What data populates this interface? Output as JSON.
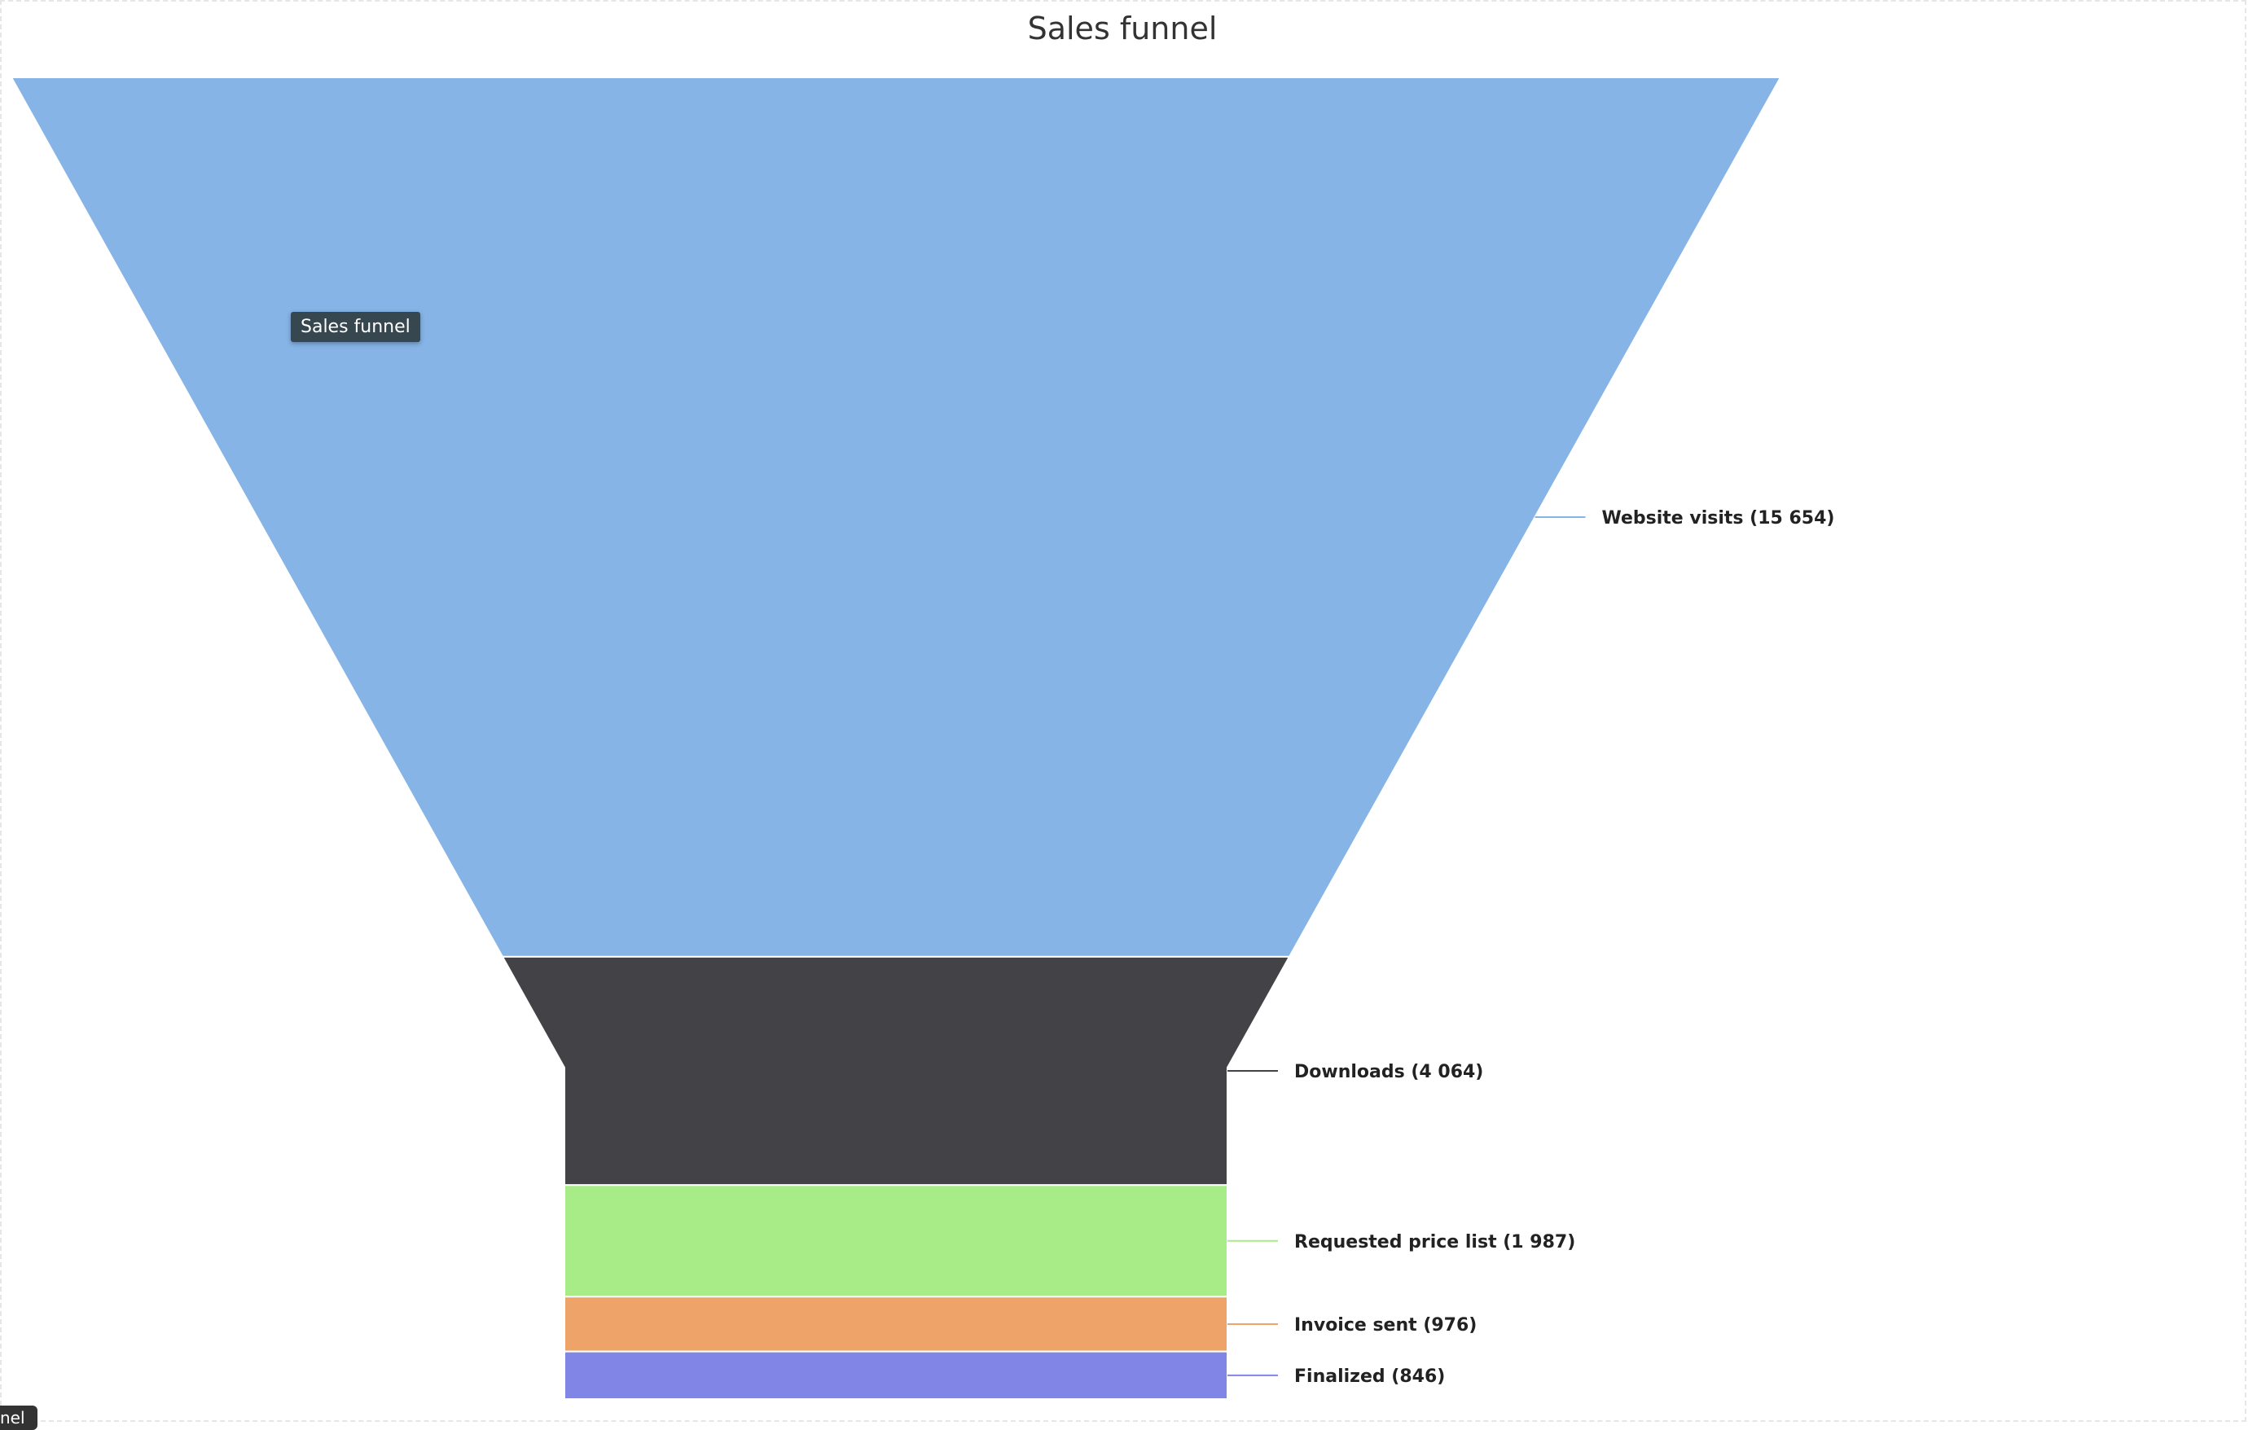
{
  "chart_data": {
    "type": "funnel",
    "title": "Sales funnel",
    "series": [
      {
        "name": "Website visits",
        "value": 15654,
        "label": "Website visits (15 654)",
        "color": "#86b4e6"
      },
      {
        "name": "Downloads",
        "value": 4064,
        "label": "Downloads (4 064)",
        "color": "#434347"
      },
      {
        "name": "Requested price list",
        "value": 1987,
        "label": "Requested price list (1 987)",
        "color": "#a8ec88"
      },
      {
        "name": "Invoice sent",
        "value": 976,
        "label": "Invoice sent (976)",
        "color": "#eea468"
      },
      {
        "name": "Finalized",
        "value": 846,
        "label": "Finalized (846)",
        "color": "#8085e6"
      }
    ]
  },
  "tooltip": {
    "text": "Sales funnel"
  },
  "corner_chip": {
    "text": "nel"
  }
}
